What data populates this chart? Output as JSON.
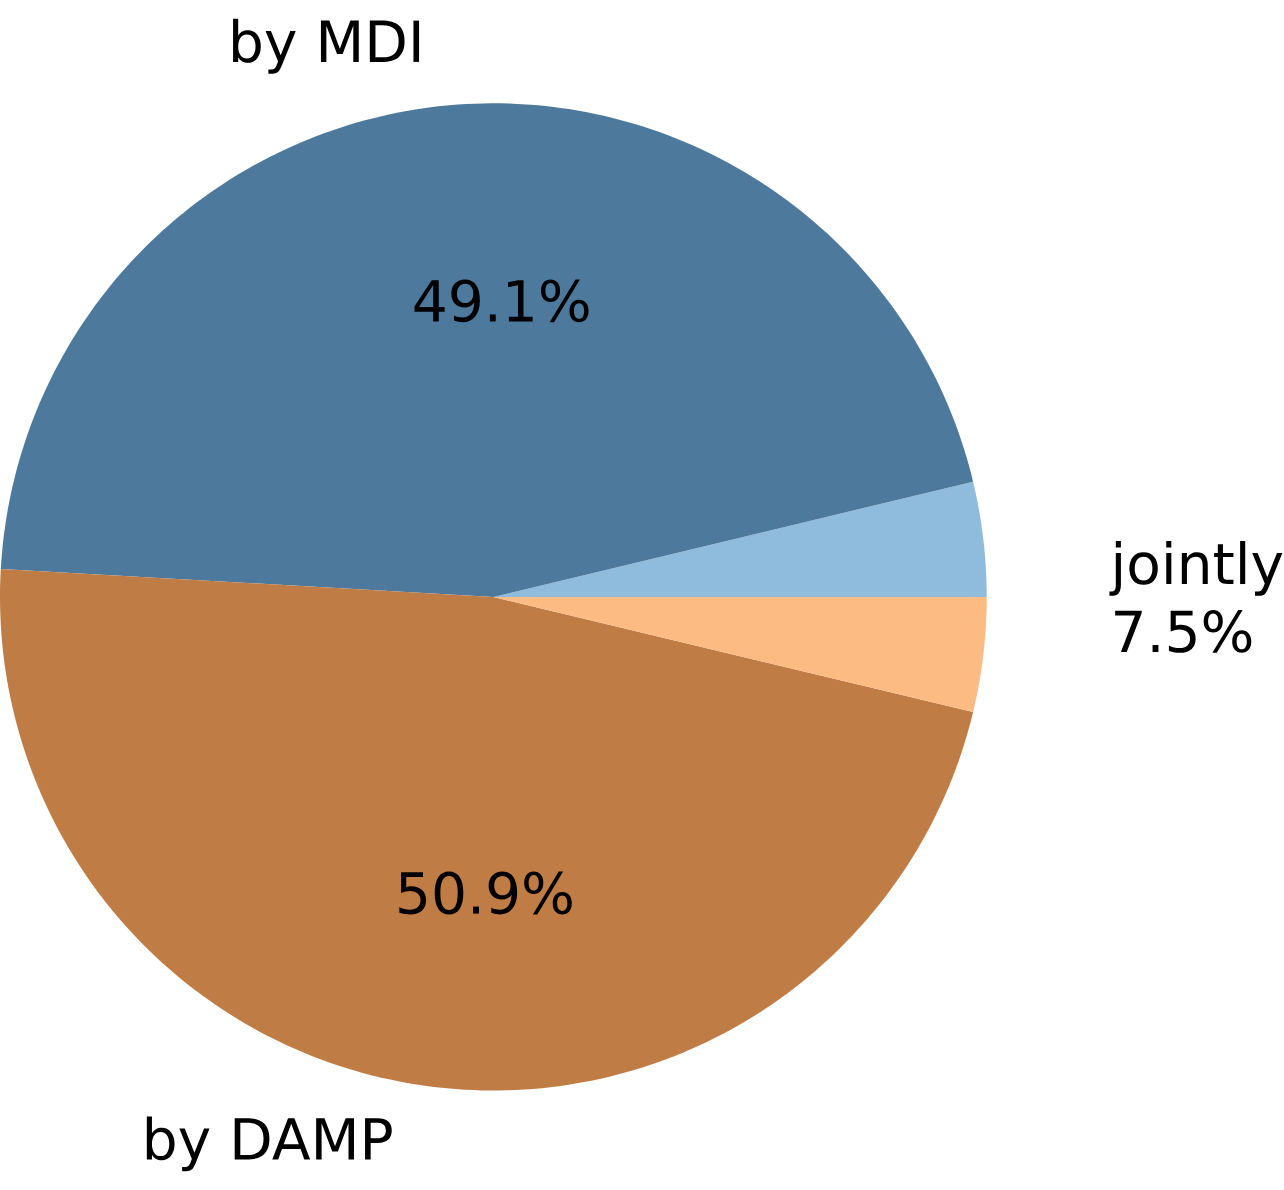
{
  "chart_data": {
    "type": "pie",
    "categories": [
      "jointly",
      "by MDI",
      "by DAMP",
      null
    ],
    "values": [
      3.75,
      45.35,
      47.15,
      3.75
    ],
    "colors": [
      "#8fbcdc",
      "#4d7a9c",
      "#c07c45",
      "#fdbb84"
    ],
    "annotations": [
      "49.1%",
      "50.9%",
      "7.5%"
    ]
  }
}
